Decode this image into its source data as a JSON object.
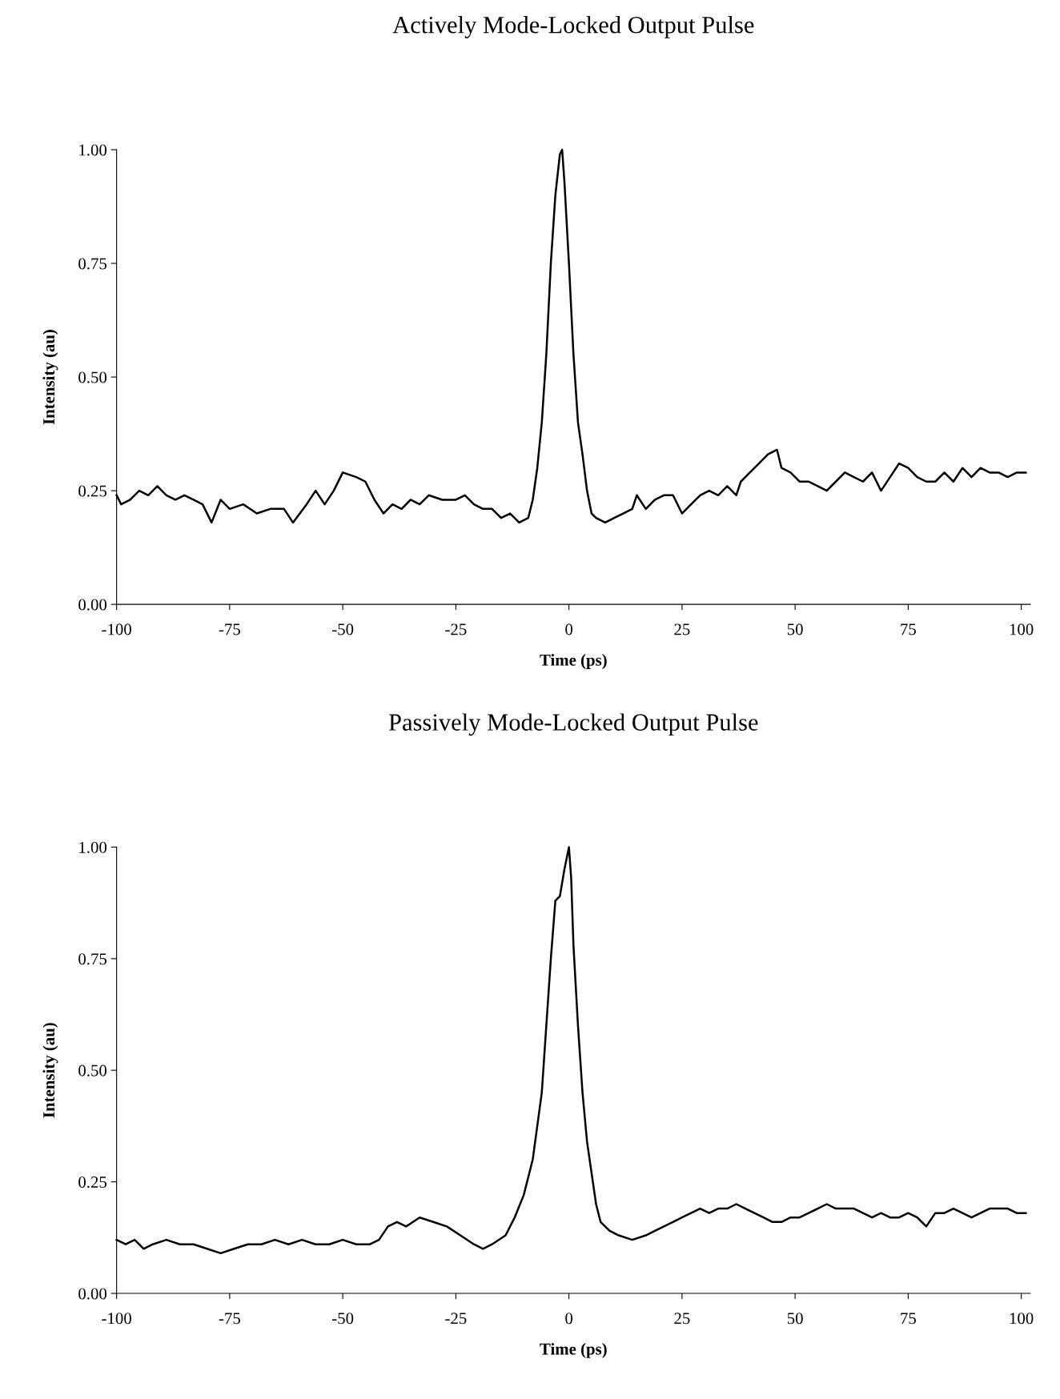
{
  "chart_data": [
    {
      "type": "line",
      "title": "Actively Mode-Locked Output Pulse",
      "xlabel": "Time (ps)",
      "ylabel": "Intensity (au)",
      "xlim": [
        -100,
        102
      ],
      "ylim": [
        0,
        1
      ],
      "xticks": [
        -100,
        -75,
        -50,
        -25,
        0,
        25,
        50,
        75,
        100
      ],
      "yticks": [
        {
          "value": 0,
          "label": "0.00"
        },
        {
          "value": 0.25,
          "label": "0.25"
        },
        {
          "value": 0.5,
          "label": "0.50"
        },
        {
          "value": 0.75,
          "label": "0.75"
        },
        {
          "value": 1,
          "label": "1.00"
        }
      ],
      "grid": false,
      "marker": "none",
      "line_style": "solid",
      "series": [
        {
          "color": "#000000",
          "x": [
            -100,
            -99,
            -97,
            -95,
            -93,
            -91,
            -89,
            -87,
            -85,
            -83,
            -81,
            -79,
            -77,
            -75,
            -72,
            -69,
            -66,
            -63,
            -61,
            -58,
            -56,
            -54,
            -52,
            -50,
            -47,
            -45,
            -43,
            -41,
            -39,
            -37,
            -35,
            -33,
            -31,
            -28,
            -25,
            -23,
            -21,
            -19,
            -17,
            -15,
            -13,
            -11,
            -9,
            -8,
            -7,
            -6,
            -5,
            -4,
            -3,
            -2,
            -1.5,
            -1,
            0,
            1,
            2,
            3,
            4,
            5,
            6,
            8,
            10,
            12,
            14,
            15,
            17,
            19,
            21,
            23,
            25,
            27,
            29,
            31,
            33,
            35,
            37,
            38,
            40,
            42,
            44,
            46,
            47,
            49,
            51,
            53,
            55,
            57,
            59,
            61,
            63,
            65,
            67,
            69,
            71,
            73,
            75,
            77,
            79,
            81,
            83,
            85,
            87,
            89,
            91,
            93,
            95,
            97,
            99,
            101
          ],
          "values": [
            0.24,
            0.22,
            0.23,
            0.25,
            0.24,
            0.26,
            0.24,
            0.23,
            0.24,
            0.23,
            0.22,
            0.18,
            0.23,
            0.21,
            0.22,
            0.2,
            0.21,
            0.21,
            0.18,
            0.22,
            0.25,
            0.22,
            0.25,
            0.29,
            0.28,
            0.27,
            0.23,
            0.2,
            0.22,
            0.21,
            0.23,
            0.22,
            0.24,
            0.23,
            0.23,
            0.24,
            0.22,
            0.21,
            0.21,
            0.19,
            0.2,
            0.18,
            0.19,
            0.23,
            0.3,
            0.4,
            0.55,
            0.75,
            0.9,
            0.99,
            1.0,
            0.93,
            0.75,
            0.55,
            0.4,
            0.33,
            0.25,
            0.2,
            0.19,
            0.18,
            0.19,
            0.2,
            0.21,
            0.24,
            0.21,
            0.23,
            0.24,
            0.24,
            0.2,
            0.22,
            0.24,
            0.25,
            0.24,
            0.26,
            0.24,
            0.27,
            0.29,
            0.31,
            0.33,
            0.34,
            0.3,
            0.29,
            0.27,
            0.27,
            0.26,
            0.25,
            0.27,
            0.29,
            0.28,
            0.27,
            0.29,
            0.25,
            0.28,
            0.31,
            0.3,
            0.28,
            0.27,
            0.27,
            0.29,
            0.27,
            0.3,
            0.28,
            0.3,
            0.29,
            0.29,
            0.28,
            0.29,
            0.29
          ]
        }
      ]
    },
    {
      "type": "line",
      "title": "Passively Mode-Locked Output Pulse",
      "xlabel": "Time (ps)",
      "ylabel": "Intensity (au)",
      "xlim": [
        -100,
        102
      ],
      "ylim": [
        0,
        1
      ],
      "xticks": [
        -100,
        -75,
        -50,
        -25,
        0,
        25,
        50,
        75,
        100
      ],
      "yticks": [
        {
          "value": 0,
          "label": "0.00"
        },
        {
          "value": 0.25,
          "label": "0.25"
        },
        {
          "value": 0.5,
          "label": "0.50"
        },
        {
          "value": 0.75,
          "label": "0.75"
        },
        {
          "value": 1,
          "label": "1.00"
        }
      ],
      "grid": false,
      "marker": "none",
      "line_style": "solid",
      "series": [
        {
          "color": "#000000",
          "x": [
            -100,
            -98,
            -96,
            -94,
            -92,
            -89,
            -86,
            -83,
            -80,
            -77,
            -74,
            -71,
            -68,
            -65,
            -62,
            -59,
            -56,
            -53,
            -50,
            -47,
            -44,
            -42,
            -40,
            -38,
            -36,
            -33,
            -30,
            -27,
            -24,
            -21,
            -19,
            -17,
            -14,
            -12,
            -10,
            -8,
            -6,
            -5,
            -4,
            -3,
            -2,
            -1,
            0,
            0.5,
            1,
            2,
            3,
            4,
            5,
            6,
            7,
            9,
            11,
            14,
            17,
            19,
            21,
            23,
            25,
            27,
            29,
            31,
            33,
            35,
            37,
            39,
            41,
            43,
            45,
            47,
            49,
            51,
            53,
            55,
            57,
            59,
            61,
            63,
            65,
            67,
            69,
            71,
            73,
            75,
            77,
            79,
            81,
            83,
            85,
            87,
            89,
            91,
            93,
            95,
            97,
            99,
            101
          ],
          "values": [
            0.12,
            0.11,
            0.12,
            0.1,
            0.11,
            0.12,
            0.11,
            0.11,
            0.1,
            0.09,
            0.1,
            0.11,
            0.11,
            0.12,
            0.11,
            0.12,
            0.11,
            0.11,
            0.12,
            0.11,
            0.11,
            0.12,
            0.15,
            0.16,
            0.15,
            0.17,
            0.16,
            0.15,
            0.13,
            0.11,
            0.1,
            0.11,
            0.13,
            0.17,
            0.22,
            0.3,
            0.45,
            0.6,
            0.75,
            0.88,
            0.89,
            0.95,
            1.0,
            0.93,
            0.78,
            0.6,
            0.45,
            0.34,
            0.27,
            0.2,
            0.16,
            0.14,
            0.13,
            0.12,
            0.13,
            0.14,
            0.15,
            0.16,
            0.17,
            0.18,
            0.19,
            0.18,
            0.19,
            0.19,
            0.2,
            0.19,
            0.18,
            0.17,
            0.16,
            0.16,
            0.17,
            0.17,
            0.18,
            0.19,
            0.2,
            0.19,
            0.19,
            0.19,
            0.18,
            0.17,
            0.18,
            0.17,
            0.17,
            0.18,
            0.17,
            0.15,
            0.18,
            0.18,
            0.19,
            0.18,
            0.17,
            0.18,
            0.19,
            0.19,
            0.19,
            0.18,
            0.18
          ]
        }
      ]
    }
  ]
}
